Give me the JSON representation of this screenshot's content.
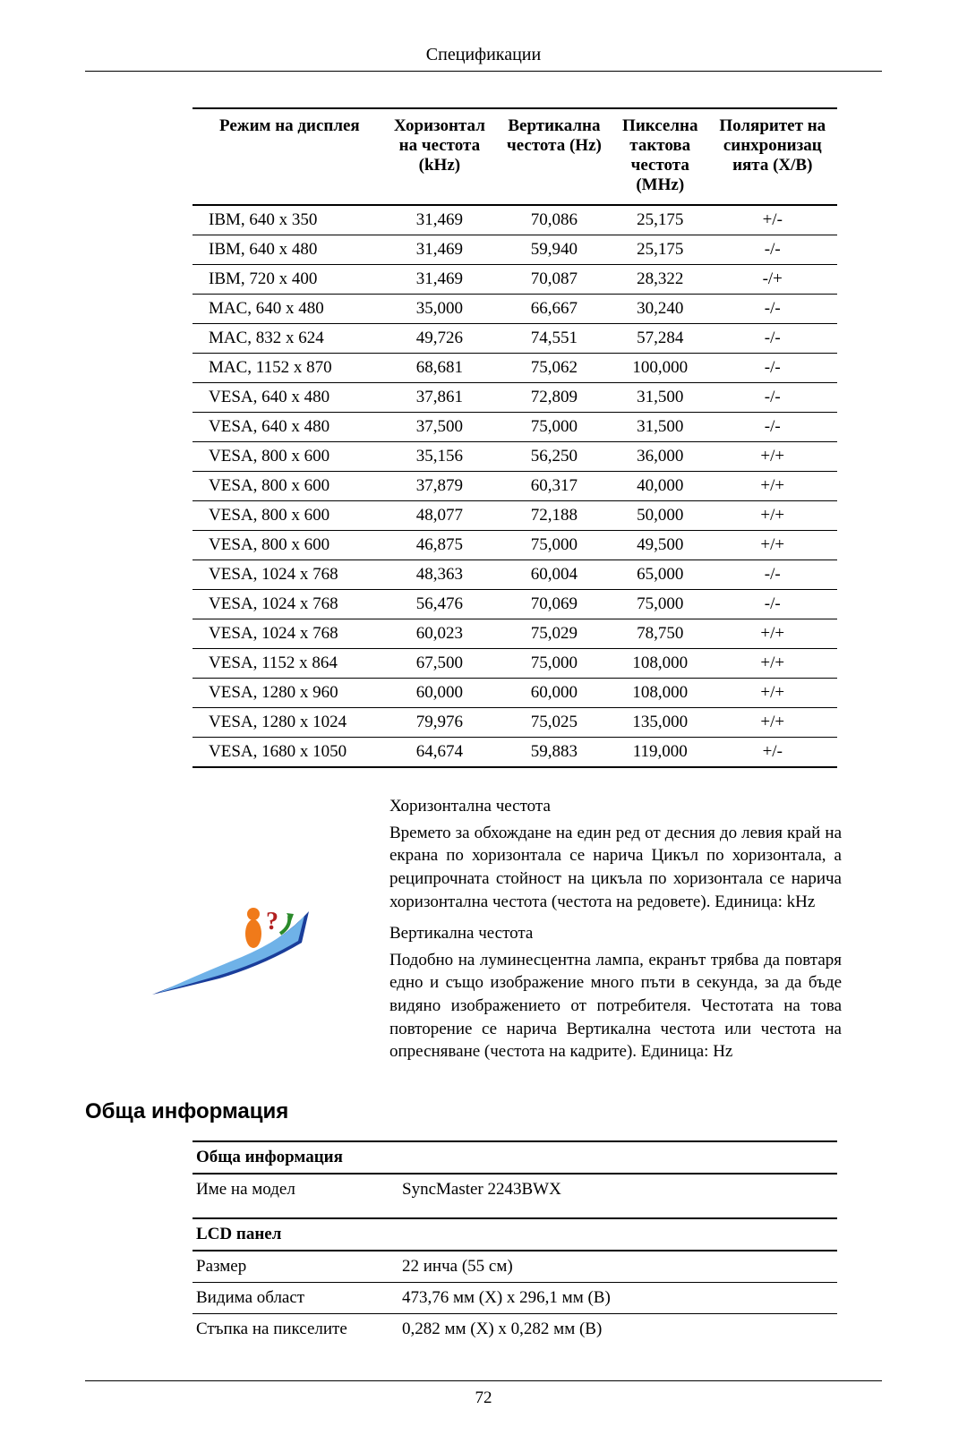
{
  "header": {
    "title": "Спецификации"
  },
  "spec_table": {
    "columns": [
      "Режим на дисплея",
      "Хоризонтална честота (kHz)",
      "Вертикална честота (Hz)",
      "Пикселна тактова честота (MHz)",
      "Поляритет на синхронизацията (Х/В)"
    ],
    "col_headers_multiline": {
      "c0": "Режим на дисплея",
      "c1a": "Хоризонтал",
      "c1b": "на честота",
      "c1c": "(kHz)",
      "c2a": "Вертикална",
      "c2b": "честота (Hz)",
      "c3a": "Пикселна",
      "c3b": "тактова",
      "c3c": "честота",
      "c3d": "(MHz)",
      "c4a": "Поляритет на",
      "c4b": "синхронизац",
      "c4c": "ията (Х/В)"
    },
    "rows": [
      [
        "IBM, 640 x 350",
        "31,469",
        "70,086",
        "25,175",
        "+/-"
      ],
      [
        "IBM, 640 x 480",
        "31,469",
        "59,940",
        "25,175",
        "-/-"
      ],
      [
        "IBM, 720 x 400",
        "31,469",
        "70,087",
        "28,322",
        "-/+"
      ],
      [
        "MAC, 640 x 480",
        "35,000",
        "66,667",
        "30,240",
        "-/-"
      ],
      [
        "MAC, 832 x 624",
        "49,726",
        "74,551",
        "57,284",
        "-/-"
      ],
      [
        "MAC, 1152 x 870",
        "68,681",
        "75,062",
        "100,000",
        "-/-"
      ],
      [
        "VESA, 640 x 480",
        "37,861",
        "72,809",
        "31,500",
        "-/-"
      ],
      [
        "VESA, 640 x 480",
        "37,500",
        "75,000",
        "31,500",
        "-/-"
      ],
      [
        "VESA, 800 x 600",
        "35,156",
        "56,250",
        "36,000",
        "+/+"
      ],
      [
        "VESA, 800 x 600",
        "37,879",
        "60,317",
        "40,000",
        "+/+"
      ],
      [
        "VESA, 800 x 600",
        "48,077",
        "72,188",
        "50,000",
        "+/+"
      ],
      [
        "VESA, 800 x 600",
        "46,875",
        "75,000",
        "49,500",
        "+/+"
      ],
      [
        "VESA, 1024 x 768",
        "48,363",
        "60,004",
        "65,000",
        "-/-"
      ],
      [
        "VESA, 1024 x 768",
        "56,476",
        "70,069",
        "75,000",
        "-/-"
      ],
      [
        "VESA, 1024 x 768",
        "60,023",
        "75,029",
        "78,750",
        "+/+"
      ],
      [
        "VESA, 1152 x 864",
        "67,500",
        "75,000",
        "108,000",
        "+/+"
      ],
      [
        "VESA, 1280 x 960",
        "60,000",
        "60,000",
        "108,000",
        "+/+"
      ],
      [
        "VESA, 1280 x 1024",
        "79,976",
        "75,025",
        "135,000",
        "+/+"
      ],
      [
        "VESA, 1680 x 1050",
        "64,674",
        "59,883",
        "119,000",
        "+/-"
      ]
    ]
  },
  "info": {
    "t1": "Хоризонтална честота",
    "p1": "Времето за обхождане на един ред от десния до левия край на екрана по хоризонтала се нарича Цикъл по хоризонтала, а реципрочната стойност на цикъла по хоризонтала се нарича хоризонтална честота (честота на редовете). Единица: kHz",
    "t2": "Вертикална честота",
    "p2": "Подобно на луминесцентна лампа, екранът трябва да повтаря едно и също изображение много пъти в секунда, за да бъде видяно изображението от потребителя. Честотата на това повторение се нарича Вертикална честота или честота на опресняване (честота на кадрите). Единица: Hz"
  },
  "section_heading": "Обща информация",
  "general_table": {
    "g1": "Обща информация",
    "r1k": "Име на модел",
    "r1v": "SyncMaster 2243BWX",
    "g2": "LCD панел",
    "r2k": "Размер",
    "r2v": "22 инча (55 см)",
    "r3k": "Видима област",
    "r3v": "473,76 мм (Х) x 296,1 мм (В)",
    "r4k": "Стъпка на пикселите",
    "r4v": "0,282 мм (Х) x 0,282 мм (В)"
  },
  "footer": {
    "page": "72"
  }
}
